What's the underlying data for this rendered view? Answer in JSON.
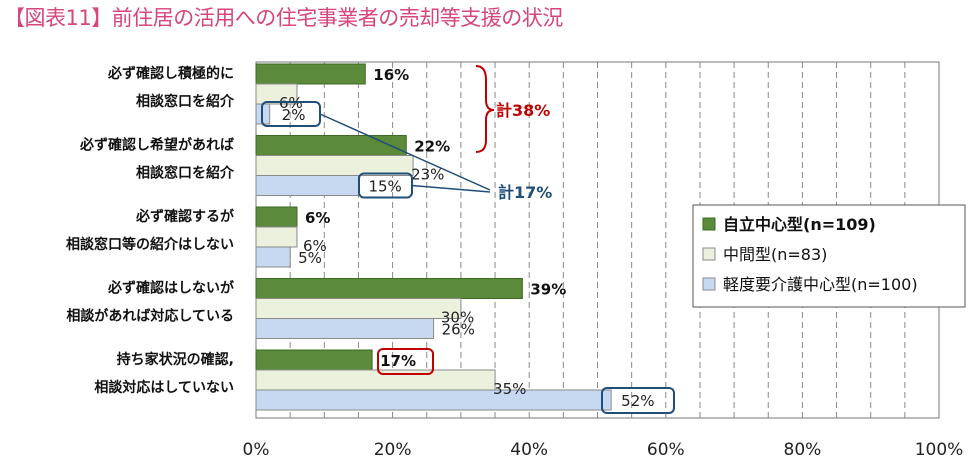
{
  "chart_data": {
    "type": "bar",
    "orientation": "horizontal",
    "title": "【図表11】前住居の活用への住宅事業者の売却等支援の状況",
    "categories": [
      [
        "必ず確認し積極的に",
        "相談窓口を紹介"
      ],
      [
        "必ず確認し希望があれば",
        "相談窓口を紹介"
      ],
      [
        "必ず確認するが",
        "相談窓口等の紹介はしない"
      ],
      [
        "必ず確認はしないが",
        "相談があれば対応している"
      ],
      [
        "持ち家状況の確認,",
        "相談対応はしていない"
      ]
    ],
    "series": [
      {
        "name": "自立中心型(n=109)",
        "values": [
          16,
          22,
          6,
          39,
          17
        ],
        "labels": [
          "16%",
          "22%",
          "6%",
          "39%",
          "17%"
        ],
        "color": "#5a8a3a"
      },
      {
        "name": "中間型(n=83)",
        "values": [
          6,
          23,
          6,
          30,
          35
        ],
        "labels": [
          "6%",
          "23%",
          "6%",
          "30%",
          "35%"
        ],
        "color": "#ebf1dd"
      },
      {
        "name": "軽度要介護中心型(n=100)",
        "values": [
          2,
          15,
          5,
          26,
          52
        ],
        "labels": [
          "2%",
          "15%",
          "5%",
          "26%",
          "52%"
        ],
        "color": "#c6d9f1"
      }
    ],
    "xlim": [
      0,
      100
    ],
    "xticks": [
      "0%",
      "20%",
      "40%",
      "60%",
      "80%",
      "100%"
    ],
    "grid": "vertical-dashed",
    "legend_position": "right",
    "annotations": {
      "brace_total": {
        "text": "計38%",
        "color": "#c00000"
      },
      "callout_total": {
        "text": "計17%",
        "color": "#1f4e79"
      }
    },
    "highlight_colors": {
      "red_box": "#c00000",
      "blue_box": "#1f4e79"
    }
  }
}
